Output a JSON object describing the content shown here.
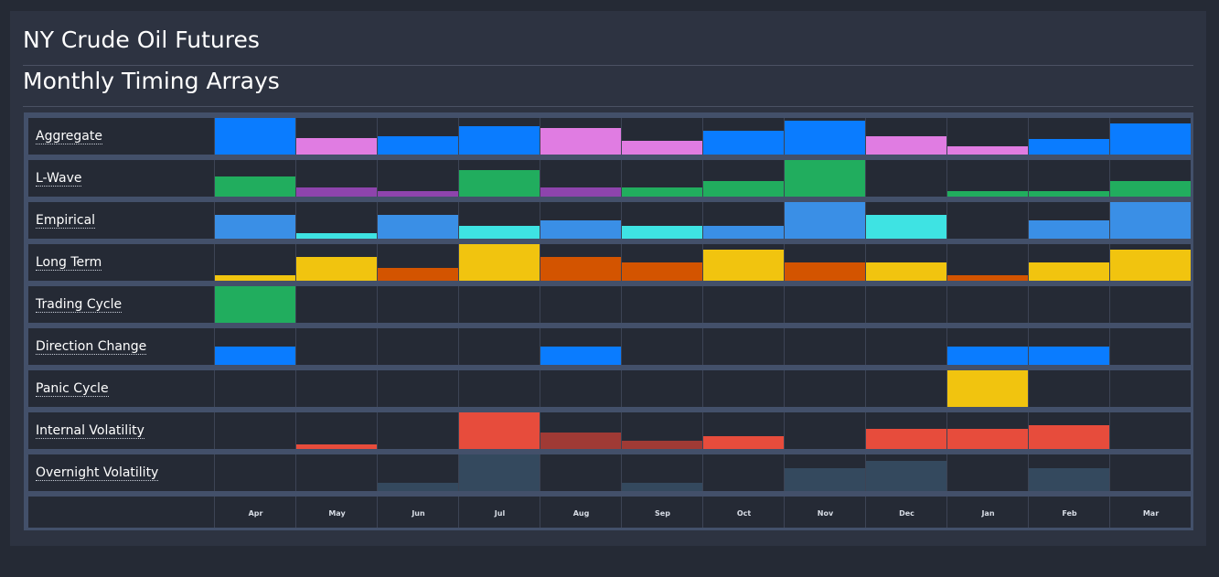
{
  "header": {
    "title": "NY Crude Oil Futures",
    "subtitle": "Monthly Timing Arrays"
  },
  "chart_data": {
    "type": "heatmap",
    "categories": [
      "Apr",
      "May",
      "Jun",
      "Jul",
      "Aug",
      "Sep",
      "Oct",
      "Nov",
      "Dec",
      "Jan",
      "Feb",
      "Mar"
    ],
    "ylim": [
      0,
      1
    ],
    "series": [
      {
        "name": "Aggregate",
        "values": [
          1.0,
          0.45,
          0.5,
          0.77,
          0.73,
          0.38,
          0.66,
          0.93,
          0.49,
          0.22,
          0.43,
          0.84
        ],
        "colors": [
          "#0a7cff",
          "#e07ce2",
          "#0a7cff",
          "#0a7cff",
          "#e07ce2",
          "#e07ce2",
          "#0a7cff",
          "#0a7cff",
          "#e07ce2",
          "#e07ce2",
          "#0a7cff",
          "#0a7cff"
        ]
      },
      {
        "name": "L-Wave",
        "values": [
          0.55,
          0.26,
          0.14,
          0.72,
          0.26,
          0.26,
          0.42,
          1.0,
          0,
          0.14,
          0.14,
          0.42
        ],
        "colors": [
          "#21ad5e",
          "#8e44ad",
          "#8e44ad",
          "#21ad5e",
          "#8e44ad",
          "#21ad5e",
          "#21ad5e",
          "#21ad5e",
          "#21ad5e",
          "#21ad5e",
          "#21ad5e",
          "#21ad5e"
        ]
      },
      {
        "name": "Empirical",
        "values": [
          0.66,
          0.16,
          0.66,
          0.34,
          0.5,
          0.34,
          0.34,
          1.0,
          0.66,
          0,
          0.5,
          1.0
        ],
        "colors": [
          "#3a8fe6",
          "#3ee3e3",
          "#3a8fe6",
          "#3ee3e3",
          "#3a8fe6",
          "#3ee3e3",
          "#3a8fe6",
          "#3a8fe6",
          "#3ee3e3",
          "#3ee3e3",
          "#3a8fe6",
          "#3a8fe6"
        ]
      },
      {
        "name": "Long Term",
        "values": [
          0.16,
          0.66,
          0.34,
          1.0,
          0.66,
          0.5,
          0.84,
          0.5,
          0.5,
          0.16,
          0.5,
          0.84
        ],
        "colors": [
          "#f1c40f",
          "#f1c40f",
          "#d35400",
          "#f1c40f",
          "#d35400",
          "#d35400",
          "#f1c40f",
          "#d35400",
          "#f1c40f",
          "#d35400",
          "#f1c40f",
          "#f1c40f"
        ]
      },
      {
        "name": "Trading Cycle",
        "values": [
          1.0,
          0,
          0,
          0,
          0,
          0,
          0,
          0,
          0,
          0,
          0,
          0
        ],
        "colors": [
          "#21ad5e",
          "#21ad5e",
          "#21ad5e",
          "#21ad5e",
          "#21ad5e",
          "#21ad5e",
          "#21ad5e",
          "#21ad5e",
          "#21ad5e",
          "#21ad5e",
          "#21ad5e",
          "#21ad5e"
        ]
      },
      {
        "name": "Direction Change",
        "values": [
          0.5,
          0,
          0,
          0,
          0.5,
          0,
          0,
          0,
          0,
          0.5,
          0.5,
          0
        ],
        "colors": [
          "#0a7cff",
          "#0a7cff",
          "#0a7cff",
          "#0a7cff",
          "#0a7cff",
          "#0a7cff",
          "#0a7cff",
          "#0a7cff",
          "#0a7cff",
          "#0a7cff",
          "#0a7cff",
          "#0a7cff"
        ]
      },
      {
        "name": "Panic Cycle",
        "values": [
          0,
          0,
          0,
          0,
          0,
          0,
          0,
          0,
          0,
          1.0,
          0,
          0
        ],
        "colors": [
          "#f1c40f",
          "#f1c40f",
          "#f1c40f",
          "#f1c40f",
          "#f1c40f",
          "#f1c40f",
          "#f1c40f",
          "#f1c40f",
          "#f1c40f",
          "#f1c40f",
          "#f1c40f",
          "#f1c40f"
        ]
      },
      {
        "name": "Internal Volatility",
        "values": [
          0,
          0.12,
          0,
          1.0,
          0.45,
          0.22,
          0.34,
          0,
          0.55,
          0.55,
          0.66,
          0
        ],
        "colors": [
          "#e74c3c",
          "#e74c3c",
          "#e74c3c",
          "#e74c3c",
          "#a03a35",
          "#a03a35",
          "#e74c3c",
          "#e74c3c",
          "#e74c3c",
          "#e74c3c",
          "#e74c3c",
          "#e74c3c"
        ]
      },
      {
        "name": "Overnight Volatility",
        "values": [
          0,
          0,
          0.22,
          1.0,
          0,
          0.22,
          0,
          0.62,
          0.82,
          0,
          0.62,
          0
        ],
        "colors": [
          "#34495e",
          "#34495e",
          "#34495e",
          "#34495e",
          "#34495e",
          "#34495e",
          "#34495e",
          "#34495e",
          "#34495e",
          "#34495e",
          "#34495e",
          "#34495e"
        ]
      }
    ]
  }
}
